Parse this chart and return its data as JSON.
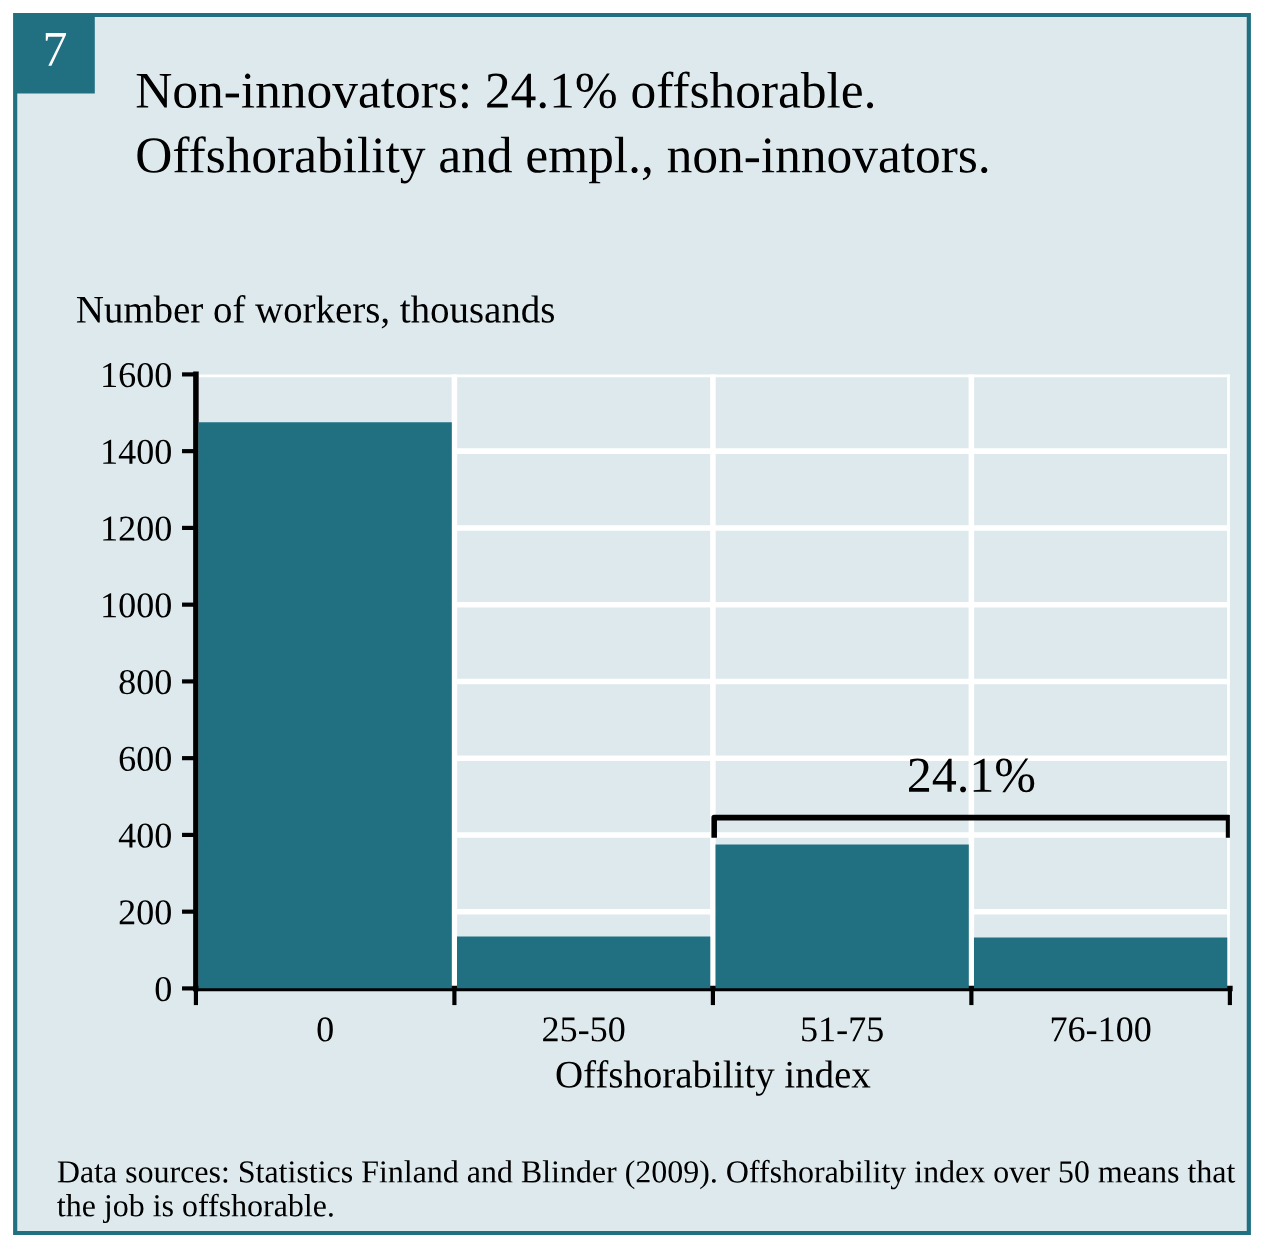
{
  "chart_data": {
    "type": "bar",
    "title": "Non-innovators: 24.1% offshorable.",
    "subtitle": "Offshorability and empl., non-innovators.",
    "ylabel": "Number of workers, thousands",
    "xlabel": "Offshorability index",
    "categories": [
      "0",
      "25-50",
      "51-75",
      "76-100"
    ],
    "values": [
      1475,
      135,
      375,
      133
    ],
    "color": "#217082",
    "ylim": [
      0,
      1600
    ],
    "yticks": [
      0,
      200,
      400,
      600,
      800,
      1000,
      1200,
      1400,
      1600
    ],
    "grid": true,
    "annotations": [
      "7",
      "24.1%",
      "Data sources: Statistics Finland and Blinder (2009). Offshorability index over 50 means that the job is offshorable."
    ]
  }
}
